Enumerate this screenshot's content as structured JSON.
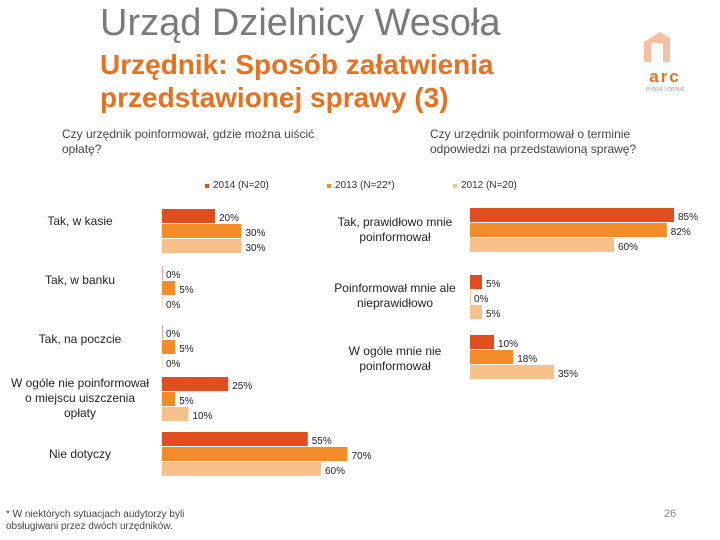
{
  "header": {
    "title": "Urząd Dzielnicy Wesoła",
    "subtitle": "Urzędnik: Sposób załatwienia przedstawionej sprawy (3)",
    "logo_text": "arc",
    "logo_tagline": "RYNEK I OPINIA"
  },
  "legend": [
    {
      "name": "2014 (N=20)",
      "color": "#e04e1f"
    },
    {
      "name": "2013 (N=22*)",
      "color": "#f28c28"
    },
    {
      "name": "2012 (N=20)",
      "color": "#f8c08a"
    }
  ],
  "chart_data": [
    {
      "type": "bar",
      "orientation": "horizontal",
      "title": "Czy urzędnik poinformował, gdzie można uiścić opłatę?",
      "categories": [
        "Tak, w kasie",
        "Tak, w banku",
        "Tak, na poczcie",
        "W ogóle nie poinformował o miejscu uiszczenia opłaty",
        "Nie dotyczy"
      ],
      "series": [
        {
          "name": "2014 (N=20)",
          "values": [
            20,
            0,
            0,
            25,
            55
          ],
          "labels": [
            "20%",
            "0%",
            "0%",
            "25%",
            "55%"
          ]
        },
        {
          "name": "2013 (N=22*)",
          "values": [
            30,
            5,
            5,
            5,
            70
          ],
          "labels": [
            "30%",
            "5%",
            "5%",
            "5%",
            "70%"
          ]
        },
        {
          "name": "2012 (N=20)",
          "values": [
            30,
            0,
            0,
            10,
            60
          ],
          "labels": [
            "30%",
            "0%",
            "0%",
            "10%",
            "60%"
          ]
        }
      ]
    },
    {
      "type": "bar",
      "orientation": "horizontal",
      "title": "Czy urzędnik poinformował o terminie odpowiedzi na przedstawioną sprawę?",
      "categories": [
        "Tak, prawidłowo mnie poinformował",
        "Poinformował mnie ale nieprawidłowo",
        "W ogóle mnie nie poinformował"
      ],
      "series": [
        {
          "name": "2014 (N=20)",
          "values": [
            85,
            5,
            10
          ],
          "labels": [
            "85%",
            "5%",
            "10%"
          ]
        },
        {
          "name": "2013 (N=22*)",
          "values": [
            82,
            0,
            18
          ],
          "labels": [
            "82%",
            "0%",
            "18%"
          ]
        },
        {
          "name": "2012 (N=20)",
          "values": [
            60,
            5,
            35
          ],
          "labels": [
            "60%",
            "5%",
            "35%"
          ]
        }
      ]
    }
  ],
  "footnote": "* W niektórych sytuacjach audytorzy byli obsługiwani przez dwóch urzędników.",
  "page_number": "26"
}
